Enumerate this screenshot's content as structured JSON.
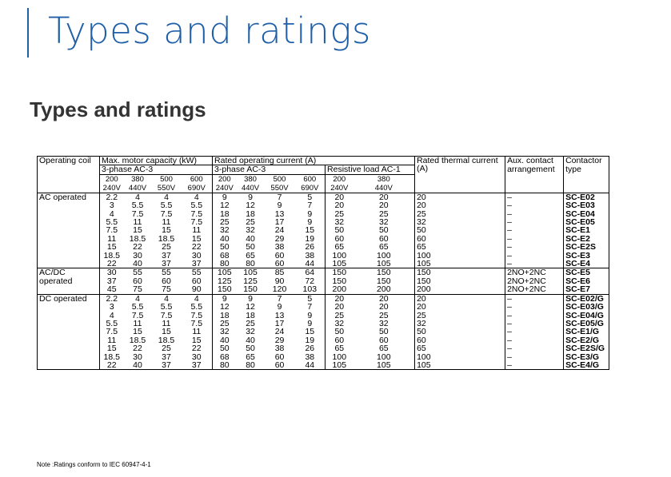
{
  "page_title": "Types and ratings",
  "section_title": "Types and ratings",
  "table": {
    "headers": {
      "operating_coil": "Operating coil",
      "max_motor": "Max. motor capacity (kW)",
      "rated_current": "Rated operating current (A)",
      "thermal": "Rated thermal current",
      "thermal_unit": "(A)",
      "aux": "Aux. contact arrangement",
      "contactor": "Contactor type",
      "three_phase_motor": "3-phase AC-3",
      "three_phase_current": "3-phase AC-3",
      "resistive": "Resistive load AC-1"
    },
    "voltage_top": [
      "200",
      "380",
      "500",
      "600",
      "200",
      "380",
      "500",
      "600",
      "200",
      "380"
    ],
    "voltage_bottom": [
      "240V",
      "440V",
      "550V",
      "690V",
      "240V",
      "440V",
      "550V",
      "690V",
      "240V",
      "440V"
    ],
    "groups": [
      {
        "coil": "AC operated",
        "rows": [
          [
            "2.2",
            "4",
            "4",
            "4",
            "9",
            "9",
            "7",
            "5",
            "20",
            "20",
            "20",
            "–",
            "SC-E02"
          ],
          [
            "3",
            "5.5",
            "5.5",
            "5.5",
            "12",
            "12",
            "9",
            "7",
            "20",
            "20",
            "20",
            "–",
            "SC-E03"
          ],
          [
            "4",
            "7.5",
            "7.5",
            "7.5",
            "18",
            "18",
            "13",
            "9",
            "25",
            "25",
            "25",
            "–",
            "SC-E04"
          ],
          [
            "5.5",
            "11",
            "11",
            "7.5",
            "25",
            "25",
            "17",
            "9",
            "32",
            "32",
            "32",
            "–",
            "SC-E05"
          ],
          [
            "7.5",
            "15",
            "15",
            "11",
            "32",
            "32",
            "24",
            "15",
            "50",
            "50",
            "50",
            "–",
            "SC-E1"
          ],
          [
            "11",
            "18.5",
            "18.5",
            "15",
            "40",
            "40",
            "29",
            "19",
            "60",
            "60",
            "60",
            "–",
            "SC-E2"
          ],
          [
            "15",
            "22",
            "25",
            "22",
            "50",
            "50",
            "38",
            "26",
            "65",
            "65",
            "65",
            "–",
            "SC-E2S"
          ],
          [
            "18.5",
            "30",
            "37",
            "30",
            "68",
            "65",
            "60",
            "38",
            "100",
            "100",
            "100",
            "–",
            "SC-E3"
          ],
          [
            "22",
            "40",
            "37",
            "37",
            "80",
            "80",
            "60",
            "44",
            "105",
            "105",
            "105",
            "–",
            "SC-E4"
          ]
        ]
      },
      {
        "coil": "AC/DC operated",
        "rows": [
          [
            "30",
            "55",
            "55",
            "55",
            "105",
            "105",
            "85",
            "64",
            "150",
            "150",
            "150",
            "2NO+2NC",
            "SC-E5"
          ],
          [
            "37",
            "60",
            "60",
            "60",
            "125",
            "125",
            "90",
            "72",
            "150",
            "150",
            "150",
            "2NO+2NC",
            "SC-E6"
          ],
          [
            "45",
            "75",
            "75",
            "90",
            "150",
            "150",
            "120",
            "103",
            "200",
            "200",
            "200",
            "2NO+2NC",
            "SC-E7"
          ]
        ]
      },
      {
        "coil": "DC operated",
        "rows": [
          [
            "2.2",
            "4",
            "4",
            "4",
            "9",
            "9",
            "7",
            "5",
            "20",
            "20",
            "20",
            "–",
            "SC-E02/G"
          ],
          [
            "3",
            "5.5",
            "5.5",
            "5.5",
            "12",
            "12",
            "9",
            "7",
            "20",
            "20",
            "20",
            "–",
            "SC-E03/G"
          ],
          [
            "4",
            "7.5",
            "7.5",
            "7.5",
            "18",
            "18",
            "13",
            "9",
            "25",
            "25",
            "25",
            "–",
            "SC-E04/G"
          ],
          [
            "5.5",
            "11",
            "11",
            "7.5",
            "25",
            "25",
            "17",
            "9",
            "32",
            "32",
            "32",
            "–",
            "SC-E05/G"
          ],
          [
            "7.5",
            "15",
            "15",
            "11",
            "32",
            "32",
            "24",
            "15",
            "50",
            "50",
            "50",
            "–",
            "SC-E1/G"
          ],
          [
            "11",
            "18.5",
            "18.5",
            "15",
            "40",
            "40",
            "29",
            "19",
            "60",
            "60",
            "60",
            "–",
            "SC-E2/G"
          ],
          [
            "15",
            "22",
            "25",
            "22",
            "50",
            "50",
            "38",
            "26",
            "65",
            "65",
            "65",
            "–",
            "SC-E2S/G"
          ],
          [
            "18.5",
            "30",
            "37",
            "30",
            "68",
            "65",
            "60",
            "38",
            "100",
            "100",
            "100",
            "–",
            "SC-E3/G"
          ],
          [
            "22",
            "40",
            "37",
            "37",
            "80",
            "80",
            "60",
            "44",
            "105",
            "105",
            "105",
            "–",
            "SC-E4/G"
          ]
        ]
      }
    ]
  },
  "note": "Note :Ratings conform to IEC 60947-4-1",
  "colors": {
    "title": "#1f5fa8",
    "section_title": "#333333"
  }
}
